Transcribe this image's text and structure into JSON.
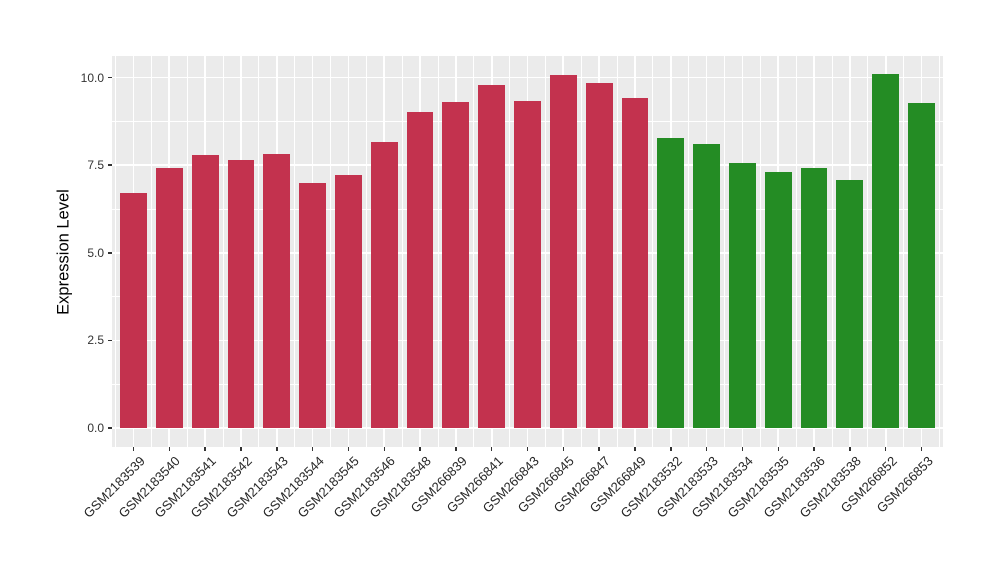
{
  "figure": {
    "panel_background": "#EBEBEB",
    "grid_major_color": "#FFFFFF",
    "grid_minor_color": "#FFFFFF",
    "tick_color": "#333333",
    "axis_text_color": "#333333",
    "axis_title_color": "#000000"
  },
  "chart_data": {
    "type": "bar",
    "title": "",
    "xlabel": "",
    "ylabel": "Expression Level",
    "ylim": [
      -0.53,
      10.65
    ],
    "yticks": [
      0.0,
      2.5,
      5.0,
      7.5,
      10.0
    ],
    "ytick_labels": [
      "0.0",
      "2.5",
      "5.0",
      "7.5",
      "10.0"
    ],
    "minor_yticks": [
      1.25,
      3.75,
      6.25,
      8.75
    ],
    "grid": "major+minor, white on gray panel",
    "legend": "none",
    "bar_width_fraction": 0.75,
    "group_colors": {
      "red": "#C3324E",
      "green": "#248C24"
    },
    "bars": [
      {
        "label": "GSM2183539",
        "value": 6.72,
        "group": "red"
      },
      {
        "label": "GSM2183540",
        "value": 7.41,
        "group": "red"
      },
      {
        "label": "GSM2183541",
        "value": 7.79,
        "group": "red"
      },
      {
        "label": "GSM2183542",
        "value": 7.65,
        "group": "red"
      },
      {
        "label": "GSM2183543",
        "value": 7.82,
        "group": "red"
      },
      {
        "label": "GSM2183544",
        "value": 6.98,
        "group": "red"
      },
      {
        "label": "GSM2183545",
        "value": 7.22,
        "group": "red"
      },
      {
        "label": "GSM2183546",
        "value": 8.17,
        "group": "red"
      },
      {
        "label": "GSM2183548",
        "value": 9.01,
        "group": "red"
      },
      {
        "label": "GSM266839",
        "value": 9.31,
        "group": "red"
      },
      {
        "label": "GSM266841",
        "value": 9.79,
        "group": "red"
      },
      {
        "label": "GSM266843",
        "value": 9.32,
        "group": "red"
      },
      {
        "label": "GSM266845",
        "value": 10.07,
        "group": "red"
      },
      {
        "label": "GSM266847",
        "value": 9.85,
        "group": "red"
      },
      {
        "label": "GSM266849",
        "value": 9.43,
        "group": "red"
      },
      {
        "label": "GSM2183532",
        "value": 8.29,
        "group": "green"
      },
      {
        "label": "GSM2183533",
        "value": 8.1,
        "group": "green"
      },
      {
        "label": "GSM2183534",
        "value": 7.55,
        "group": "green"
      },
      {
        "label": "GSM2183535",
        "value": 7.32,
        "group": "green"
      },
      {
        "label": "GSM2183536",
        "value": 7.41,
        "group": "green"
      },
      {
        "label": "GSM2183538",
        "value": 7.08,
        "group": "green"
      },
      {
        "label": "GSM266852",
        "value": 10.1,
        "group": "green"
      },
      {
        "label": "GSM266853",
        "value": 9.27,
        "group": "green"
      }
    ]
  }
}
